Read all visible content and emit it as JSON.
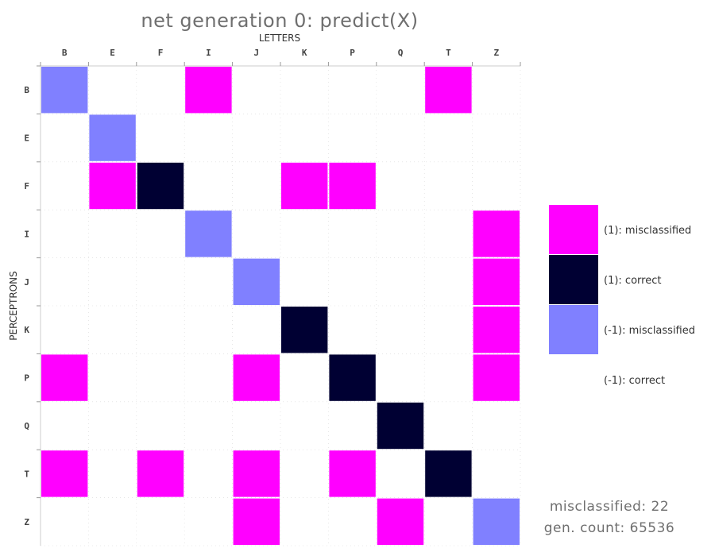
{
  "chart_data": {
    "type": "heatmap",
    "title": "net generation 0: predict(X)",
    "xlabel": "LETTERS",
    "ylabel": "PERCEPTRONS",
    "columns": [
      "B",
      "E",
      "F",
      "I",
      "J",
      "K",
      "P",
      "Q",
      "T",
      "Z"
    ],
    "rows": [
      "B",
      "E",
      "F",
      "I",
      "J",
      "K",
      "P",
      "Q",
      "T",
      "Z"
    ],
    "cell_codes": {
      "0": "(-1): correct",
      "1": "(-1): misclassified",
      "2": "(1): correct",
      "3": "(1): misclassified"
    },
    "matrix": [
      [
        1,
        0,
        0,
        3,
        0,
        0,
        0,
        0,
        3,
        0
      ],
      [
        0,
        1,
        0,
        0,
        0,
        0,
        0,
        0,
        0,
        0
      ],
      [
        0,
        3,
        2,
        0,
        0,
        3,
        3,
        0,
        0,
        0
      ],
      [
        0,
        0,
        0,
        1,
        0,
        0,
        0,
        0,
        0,
        3
      ],
      [
        0,
        0,
        0,
        0,
        1,
        0,
        0,
        0,
        0,
        3
      ],
      [
        0,
        0,
        0,
        0,
        0,
        2,
        0,
        0,
        0,
        3
      ],
      [
        3,
        0,
        0,
        0,
        3,
        0,
        2,
        0,
        0,
        3
      ],
      [
        0,
        0,
        0,
        0,
        0,
        0,
        0,
        2,
        0,
        0
      ],
      [
        3,
        0,
        3,
        0,
        3,
        0,
        3,
        0,
        2,
        0
      ],
      [
        0,
        0,
        0,
        0,
        3,
        0,
        0,
        3,
        0,
        1
      ]
    ],
    "legend": [
      {
        "label": "(1): misclassified",
        "color": "#ff00ff"
      },
      {
        "label": "(1): correct",
        "color": "#000033"
      },
      {
        "label": "(-1): misclassified",
        "color": "#8080ff"
      },
      {
        "label": "(-1): correct",
        "color": "#ffffff"
      }
    ],
    "legend_placement": "right",
    "grid": true,
    "colors": {
      "(1): misclassified": "#ff00ff",
      "(1): correct": "#000033",
      "(-1): misclassified": "#8080ff",
      "(-1): correct": "#ffffff"
    }
  },
  "stats": {
    "misclassified": "misclassified: 22",
    "gen_count": "gen. count: 65536"
  }
}
